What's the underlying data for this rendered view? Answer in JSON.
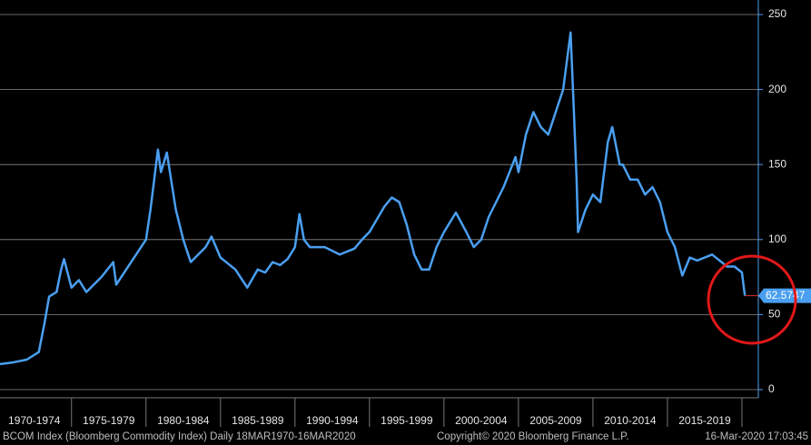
{
  "chart_data": {
    "type": "line",
    "categories": [
      "1970-1974",
      "1975-1979",
      "1980-1984",
      "1985-1989",
      "1990-1994",
      "1995-1999",
      "2000-2004",
      "2005-2009",
      "2010-2014",
      "2015-2019"
    ],
    "xticks": [
      1970,
      1975,
      1980,
      1985,
      1990,
      1995,
      2000,
      2005,
      2010,
      2015,
      2020
    ],
    "xlim": [
      1970.2,
      2021.1
    ],
    "ylim": [
      0,
      250
    ],
    "yticks": [
      0,
      50,
      100,
      150,
      200,
      250
    ],
    "grid": true,
    "series": [
      {
        "name": "BCOM Index",
        "color": "#4a9ff0",
        "x": [
          1970.2,
          1971,
          1972,
          1972.8,
          1973.2,
          1973.5,
          1974,
          1974.3,
          1974.5,
          1975,
          1975.5,
          1976,
          1977,
          1977.8,
          1978,
          1979,
          1980,
          1980.3,
          1980.8,
          1981,
          1981.4,
          1982,
          1982.5,
          1983,
          1984,
          1984.4,
          1985,
          1986,
          1986.8,
          1987.5,
          1988,
          1988.5,
          1989,
          1989.5,
          1990,
          1990.3,
          1990.6,
          1991,
          1992,
          1993,
          1994,
          1994.5,
          1995,
          1996,
          1996.5,
          1997,
          1997.5,
          1998,
          1998.5,
          1999,
          1999.5,
          2000,
          2000.8,
          2001.5,
          2002,
          2002.5,
          2003,
          2004,
          2004.8,
          2005,
          2005.5,
          2006,
          2006.5,
          2007,
          2007.5,
          2008,
          2008.5,
          2008.7,
          2008.9,
          2009,
          2009.5,
          2010,
          2010.5,
          2011,
          2011.3,
          2011.8,
          2012,
          2012.5,
          2013,
          2013.5,
          2014,
          2014.5,
          2015,
          2015.5,
          2016,
          2016.5,
          2017,
          2018,
          2019,
          2019.5,
          2020,
          2020.1,
          2020.2
        ],
        "values": [
          17,
          18,
          20,
          25,
          45,
          62,
          65,
          80,
          87,
          68,
          73,
          65,
          75,
          85,
          70,
          85,
          100,
          120,
          160,
          145,
          158,
          120,
          100,
          85,
          95,
          102,
          88,
          80,
          68,
          80,
          78,
          85,
          83,
          87,
          95,
          117,
          100,
          95,
          95,
          90,
          94,
          100,
          105,
          122,
          128,
          125,
          110,
          90,
          80,
          80,
          95,
          105,
          118,
          105,
          95,
          100,
          115,
          135,
          155,
          145,
          170,
          185,
          175,
          170,
          185,
          200,
          238,
          190,
          140,
          105,
          120,
          130,
          125,
          165,
          175,
          150,
          150,
          140,
          140,
          130,
          135,
          125,
          105,
          95,
          76,
          88,
          86,
          90,
          82,
          82,
          78,
          70,
          62.5747
        ]
      }
    ]
  },
  "footer": {
    "left": "BCOM Index (Bloomberg Commodity Index)  Daily 18MAR1970-16MAR2020",
    "center": "Copyright© 2020 Bloomberg Finance L.P.",
    "right": "16-Mar-2020 17:03:45"
  }
}
